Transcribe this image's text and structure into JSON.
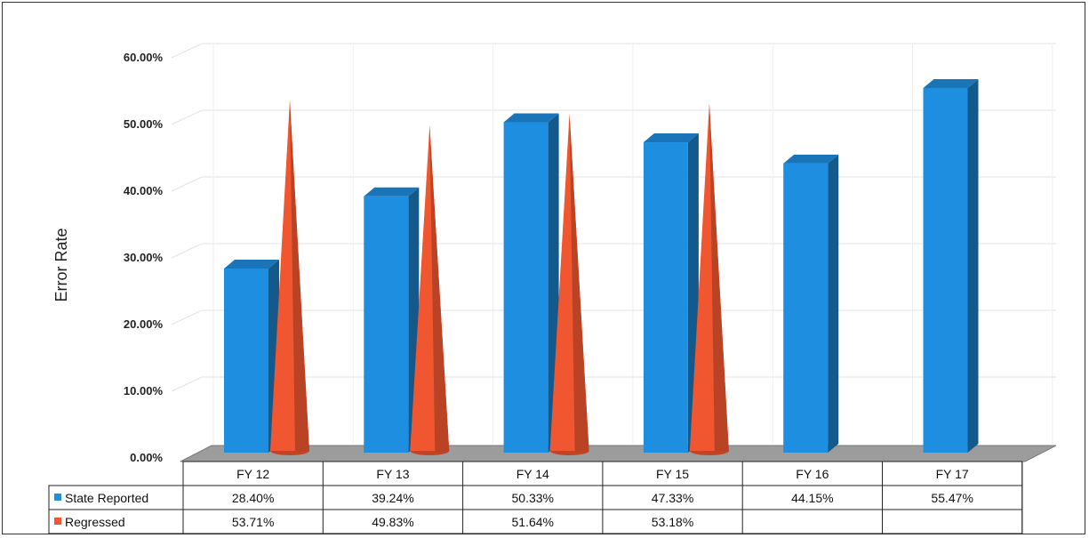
{
  "chart_data": {
    "type": "bar",
    "ylabel": "Error Rate",
    "ylim": [
      0,
      0.6
    ],
    "yticks": [
      "0.00%",
      "10.00%",
      "20.00%",
      "30.00%",
      "40.00%",
      "50.00%",
      "60.00%"
    ],
    "grid": true,
    "legend_placement": "data-table-left",
    "categories": [
      "FY 12",
      "FY 13",
      "FY 14",
      "FY 15",
      "FY 16",
      "FY 17"
    ],
    "series": [
      {
        "name": "State Reported",
        "shape": "bar-3d",
        "color": "#1E8FE0",
        "values": [
          0.284,
          0.3924,
          0.5033,
          0.4733,
          0.4415,
          0.5547
        ],
        "labels": [
          "28.40%",
          "39.24%",
          "50.33%",
          "47.33%",
          "44.15%",
          "55.47%"
        ]
      },
      {
        "name": "Regressed",
        "shape": "cone",
        "color": "#F0562F",
        "values": [
          0.5371,
          0.4983,
          0.5164,
          0.5318,
          null,
          null
        ],
        "labels": [
          "53.71%",
          "49.83%",
          "51.64%",
          "53.18%",
          "",
          ""
        ]
      }
    ]
  }
}
